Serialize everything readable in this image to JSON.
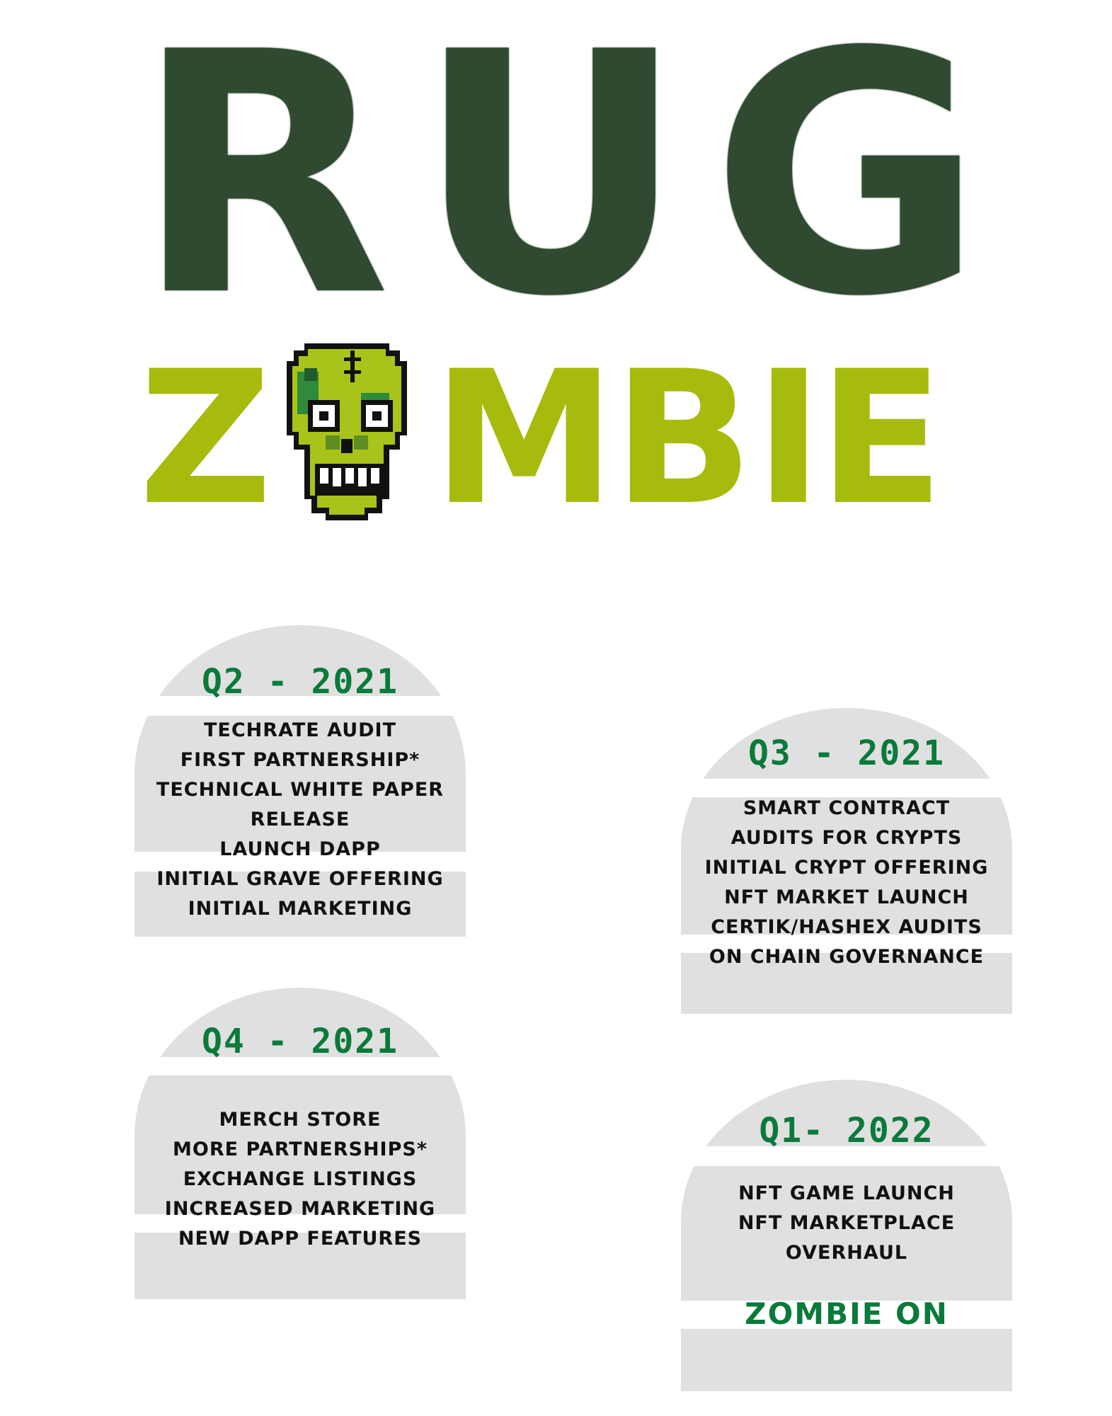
{
  "logo": {
    "line1": [
      "R",
      "U",
      "G"
    ],
    "line2_left": "Z",
    "line2_right": [
      "M",
      "B",
      "I",
      "E"
    ],
    "skull_icon": "pixel-zombie-skull",
    "colors": {
      "rug": "#2f4a30",
      "zombie": "#a7bb0d",
      "accent": "#0a7a3b",
      "stone": "#e0e0e0"
    }
  },
  "roadmap": [
    {
      "title": "Q2 - 2021",
      "items": [
        "TECHRATE AUDIT",
        "FIRST PARTNERSHIP*",
        "TECHNICAL WHITE PAPER",
        "RELEASE",
        "LAUNCH DAPP",
        "INITIAL GRAVE OFFERING",
        "INITIAL MARKETING"
      ]
    },
    {
      "title": "Q3 - 2021",
      "items": [
        "SMART CONTRACT",
        "AUDITS FOR CRYPTS",
        "INITIAL CRYPT OFFERING",
        "NFT MARKET LAUNCH",
        "CERTIK/HASHEX AUDITS",
        "ON CHAIN GOVERNANCE"
      ]
    },
    {
      "title": "Q4 - 2021",
      "items": [
        "MERCH STORE",
        "MORE PARTNERSHIPS*",
        "EXCHANGE LISTINGS",
        "INCREASED MARKETING",
        "NEW DAPP FEATURES"
      ]
    },
    {
      "title": "Q1- 2022",
      "items": [
        "NFT GAME LAUNCH",
        "NFT MARKETPLACE",
        "OVERHAUL"
      ],
      "footer": "ZOMBIE ON"
    }
  ]
}
